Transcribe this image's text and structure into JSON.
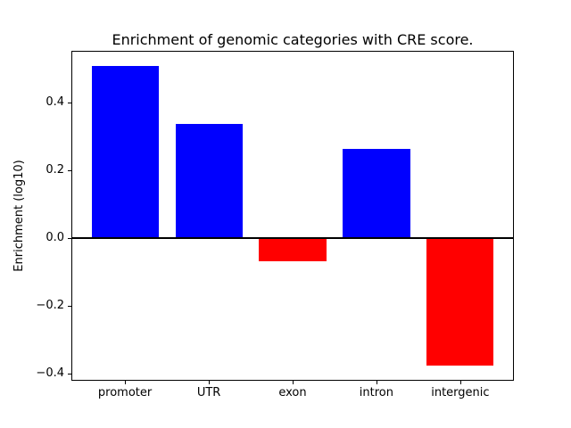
{
  "figure": {
    "background": "#ffffff"
  },
  "chart_data": {
    "type": "bar",
    "title": "Enrichment of genomic categories with CRE score.",
    "xlabel": "",
    "ylabel": "Enrichment (log10)",
    "categories": [
      "promoter",
      "UTR",
      "exon",
      "intron",
      "intergenic"
    ],
    "values": [
      0.508,
      0.336,
      -0.067,
      0.264,
      -0.376
    ],
    "bar_colors": [
      "#0000ff",
      "#0000ff",
      "#ff0000",
      "#0000ff",
      "#ff0000"
    ],
    "positive_color": "#0000ff",
    "negative_color": "#ff0000",
    "bar_width": 0.8,
    "xlim": [
      -0.64,
      4.64
    ],
    "ylim": [
      -0.42,
      0.552
    ],
    "yticks": [
      0.4,
      0.2,
      0.0,
      -0.2,
      -0.4
    ],
    "ytick_labels": [
      "0.4",
      "0.2",
      "0.0",
      "−0.2",
      "−0.4"
    ],
    "grid": false,
    "legend": null,
    "zero_line": true,
    "axis_color": "#000000",
    "text_color": "#000000"
  }
}
